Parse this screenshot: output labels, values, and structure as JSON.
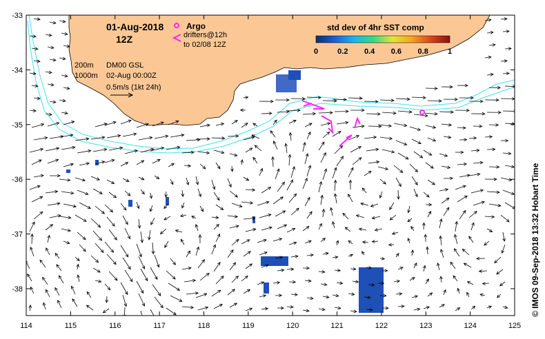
{
  "header": {
    "date": "01-Aug-2018",
    "time": "12Z",
    "argo_label": "Argo",
    "drifters_line1": "drifters@12h",
    "drifters_line2": "to 02/08 12Z"
  },
  "info": {
    "iso_200": "200m",
    "iso_1000": "1000m",
    "product": "DM00 GSL",
    "analysis_time": "02-Aug 00:00Z",
    "scale_text": "0.5m/s (1kt 24h)"
  },
  "colorbar": {
    "title": "std dev of 4hr SST comp",
    "ticks": [
      "0",
      "0.2",
      "0.4",
      "0.6",
      "0.8",
      "1"
    ],
    "stops": [
      "#08306b",
      "#1f5fd6",
      "#17b8ef",
      "#36d986",
      "#e2e63a",
      "#f7a51f",
      "#d8461f",
      "#8a1010"
    ]
  },
  "axes": {
    "x_ticks": [
      "114",
      "115",
      "116",
      "117",
      "118",
      "119",
      "120",
      "121",
      "122",
      "123",
      "124",
      "125"
    ],
    "y_ticks": [
      "-33",
      "-34",
      "-35",
      "-36",
      "-37",
      "-38"
    ]
  },
  "credit": "© IMOS 09-Sep-2018 13:32 Hobart Time",
  "colors": {
    "land": "#fbc895",
    "isobath": "#3ee0f0",
    "drifter": "#ff22ff",
    "argo": "#ff22ff",
    "sst_patch": "#1e50b8"
  }
}
